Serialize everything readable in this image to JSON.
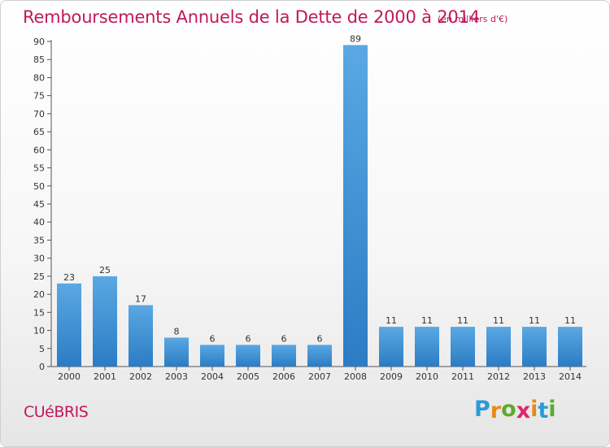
{
  "header": {
    "title": "Remboursements Annuels de la Dette de 2000 à 2014",
    "unit": "(en milliers d'€)"
  },
  "footer": {
    "commune": "CUéBRIS",
    "logo": {
      "letters": [
        "P",
        "r",
        "o",
        "x",
        "i",
        "t",
        "i"
      ],
      "colors": [
        "#2e9ad6",
        "#e68a1a",
        "#5dab2e",
        "#e0246b",
        "#e68a1a",
        "#2e9ad6",
        "#5dab2e"
      ]
    }
  },
  "chart_data": {
    "type": "bar",
    "title": "Remboursements Annuels de la Dette de 2000 à 2014",
    "categories": [
      "2000",
      "2001",
      "2002",
      "2003",
      "2004",
      "2005",
      "2006",
      "2007",
      "2008",
      "2009",
      "2010",
      "2011",
      "2012",
      "2013",
      "2014"
    ],
    "values": [
      23,
      25,
      17,
      8,
      6,
      6,
      6,
      6,
      89,
      11,
      11,
      11,
      11,
      11,
      11
    ],
    "data_labels": [
      "23",
      "25",
      "17",
      "8",
      "6",
      "6",
      "6",
      "6",
      "89",
      "11",
      "11",
      "11",
      "11",
      "11",
      "11"
    ],
    "xlabel": "",
    "ylabel": "",
    "ylim": [
      0,
      90
    ],
    "yticks": [
      0,
      5,
      10,
      15,
      20,
      25,
      30,
      35,
      40,
      45,
      50,
      55,
      60,
      65,
      70,
      75,
      80,
      85,
      90
    ],
    "grid": false,
    "bar_color_top": "#5aa8e3",
    "bar_color_bottom": "#2b7cc4"
  }
}
